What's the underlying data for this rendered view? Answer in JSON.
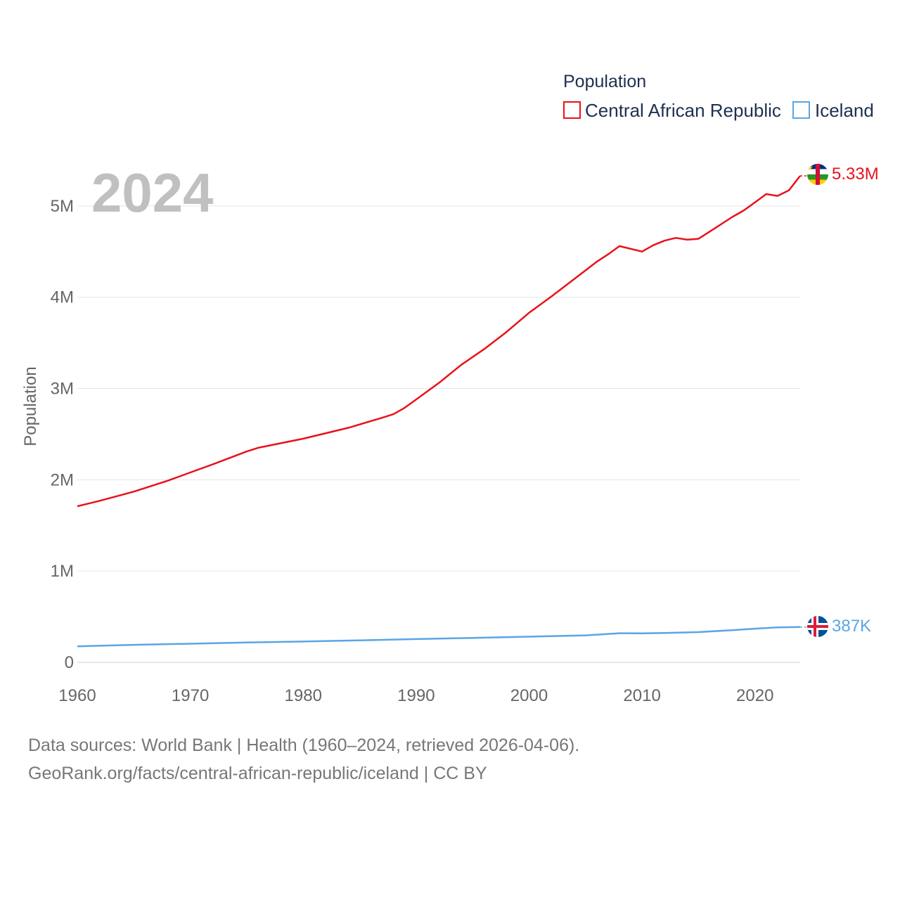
{
  "chart_data": {
    "type": "line",
    "title": "2024",
    "legend_title": "Population",
    "ylabel": "Population",
    "xlabel": "",
    "xlim": [
      1960,
      2024
    ],
    "ylim": [
      0,
      5500000
    ],
    "x_ticks": [
      1960,
      1970,
      1980,
      1990,
      2000,
      2010,
      2020
    ],
    "y_ticks": [
      {
        "value": 0,
        "label": "0"
      },
      {
        "value": 1000000,
        "label": "1M"
      },
      {
        "value": 2000000,
        "label": "2M"
      },
      {
        "value": 3000000,
        "label": "3M"
      },
      {
        "value": 4000000,
        "label": "4M"
      },
      {
        "value": 5000000,
        "label": "5M"
      }
    ],
    "legend_position": "top-right",
    "grid": true,
    "series": [
      {
        "name": "Central African Republic",
        "color": "#e8121a",
        "end_label": "5.33M",
        "flag_icon": "central-african-republic-flag-icon",
        "points": [
          [
            1960,
            1710000
          ],
          [
            1962,
            1770000
          ],
          [
            1965,
            1870000
          ],
          [
            1968,
            1990000
          ],
          [
            1970,
            2080000
          ],
          [
            1972,
            2170000
          ],
          [
            1975,
            2310000
          ],
          [
            1976,
            2350000
          ],
          [
            1980,
            2450000
          ],
          [
            1984,
            2570000
          ],
          [
            1987,
            2680000
          ],
          [
            1988,
            2720000
          ],
          [
            1989,
            2790000
          ],
          [
            1990,
            2880000
          ],
          [
            1992,
            3060000
          ],
          [
            1994,
            3260000
          ],
          [
            1996,
            3430000
          ],
          [
            1998,
            3620000
          ],
          [
            2000,
            3830000
          ],
          [
            2002,
            4010000
          ],
          [
            2004,
            4200000
          ],
          [
            2006,
            4390000
          ],
          [
            2007,
            4470000
          ],
          [
            2008,
            4560000
          ],
          [
            2010,
            4500000
          ],
          [
            2011,
            4570000
          ],
          [
            2012,
            4620000
          ],
          [
            2013,
            4650000
          ],
          [
            2014,
            4630000
          ],
          [
            2015,
            4640000
          ],
          [
            2016,
            4720000
          ],
          [
            2018,
            4880000
          ],
          [
            2019,
            4950000
          ],
          [
            2020,
            5040000
          ],
          [
            2021,
            5130000
          ],
          [
            2022,
            5110000
          ],
          [
            2023,
            5170000
          ],
          [
            2024,
            5330000
          ]
        ]
      },
      {
        "name": "Iceland",
        "color": "#5aa5e5",
        "end_label": "387K",
        "flag_icon": "iceland-flag-icon",
        "points": [
          [
            1960,
            176000
          ],
          [
            1965,
            192000
          ],
          [
            1970,
            204000
          ],
          [
            1975,
            218000
          ],
          [
            1980,
            228000
          ],
          [
            1985,
            241000
          ],
          [
            1990,
            255000
          ],
          [
            1995,
            267000
          ],
          [
            2000,
            281000
          ],
          [
            2005,
            296000
          ],
          [
            2008,
            319000
          ],
          [
            2010,
            318000
          ],
          [
            2012,
            321000
          ],
          [
            2015,
            331000
          ],
          [
            2018,
            353000
          ],
          [
            2020,
            369000
          ],
          [
            2022,
            383000
          ],
          [
            2024,
            387000
          ]
        ]
      }
    ]
  },
  "footer": {
    "sources": "Data sources: World Bank | Health (1960–2024, retrieved 2026-04-06).",
    "credit": "GeoRank.org/facts/central-african-republic/iceland | CC BY"
  }
}
